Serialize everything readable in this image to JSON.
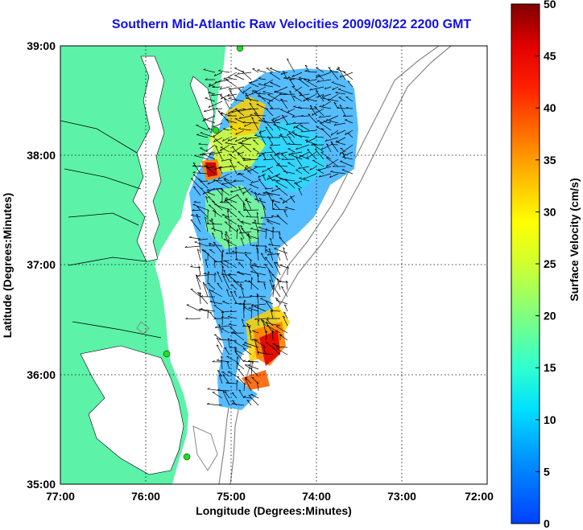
{
  "title": "Southern Mid-Atlantic Raw Velocities 2009/03/22 2200 GMT",
  "x_axis": {
    "label": "Longitude (Degrees:Minutes)",
    "ticks": [
      "77:00",
      "76:00",
      "75:00",
      "74:00",
      "73:00",
      "72:00"
    ],
    "range": [
      -77,
      -72
    ]
  },
  "y_axis": {
    "label": "Latitude (Degrees:Minutes)",
    "ticks": [
      "39:00",
      "38:00",
      "37:00",
      "36:00",
      "35:00"
    ],
    "range": [
      35,
      39
    ]
  },
  "colorbar": {
    "label": "Surface Velocity (cm/s)",
    "ticks": [
      "0",
      "5",
      "10",
      "15",
      "20",
      "25",
      "30",
      "35",
      "40",
      "45",
      "50"
    ],
    "range": [
      0,
      50
    ]
  },
  "colors": {
    "land": "#5cf2a8",
    "title": "#1010ee",
    "station": "#22dd22"
  }
}
